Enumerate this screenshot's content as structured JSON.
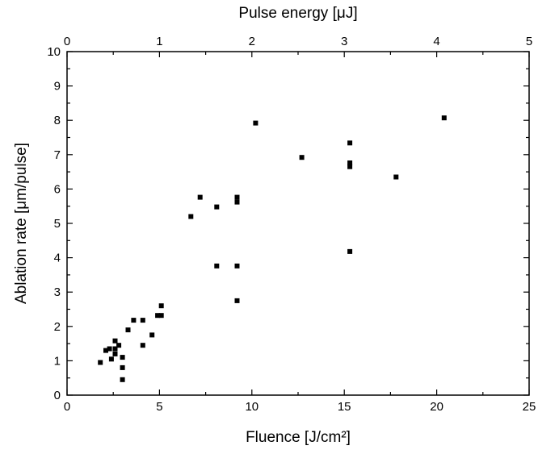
{
  "chart_data": {
    "type": "scatter",
    "title": "",
    "xlabel": "Fluence [J/cm²]",
    "x2label": "Pulse energy [μJ]",
    "ylabel": "Ablation rate [μm/pulse]",
    "xlim": [
      0,
      25
    ],
    "x2lim": [
      0,
      5
    ],
    "ylim": [
      0,
      10
    ],
    "xticks": [
      "0",
      "5",
      "10",
      "15",
      "20",
      "25"
    ],
    "x2ticks": [
      "0",
      "1",
      "2",
      "3",
      "4",
      "5"
    ],
    "yticks": [
      "0",
      "1",
      "2",
      "3",
      "4",
      "5",
      "6",
      "7",
      "8",
      "9",
      "10"
    ],
    "grid": false,
    "marker_color": "#000000",
    "series": [
      {
        "points": [
          [
            1.8,
            0.95
          ],
          [
            2.1,
            1.3
          ],
          [
            2.3,
            1.35
          ],
          [
            2.4,
            1.05
          ],
          [
            2.6,
            1.2
          ],
          [
            2.6,
            1.35
          ],
          [
            2.6,
            1.58
          ],
          [
            2.8,
            1.45
          ],
          [
            3.0,
            0.45
          ],
          [
            3.0,
            0.8
          ],
          [
            3.0,
            1.1
          ],
          [
            3.3,
            1.9
          ],
          [
            3.6,
            2.18
          ],
          [
            4.1,
            1.45
          ],
          [
            4.1,
            2.18
          ],
          [
            4.6,
            1.75
          ],
          [
            4.9,
            2.32
          ],
          [
            5.1,
            2.32
          ],
          [
            5.1,
            2.6
          ],
          [
            6.7,
            5.2
          ],
          [
            7.2,
            5.76
          ],
          [
            8.1,
            5.48
          ],
          [
            8.1,
            3.76
          ],
          [
            9.2,
            5.76
          ],
          [
            9.2,
            5.62
          ],
          [
            9.2,
            3.76
          ],
          [
            9.2,
            2.75
          ],
          [
            10.2,
            7.92
          ],
          [
            12.7,
            6.92
          ],
          [
            15.3,
            7.34
          ],
          [
            15.3,
            6.76
          ],
          [
            15.3,
            6.65
          ],
          [
            15.3,
            4.18
          ],
          [
            17.8,
            6.35
          ],
          [
            20.4,
            8.07
          ]
        ]
      }
    ]
  }
}
